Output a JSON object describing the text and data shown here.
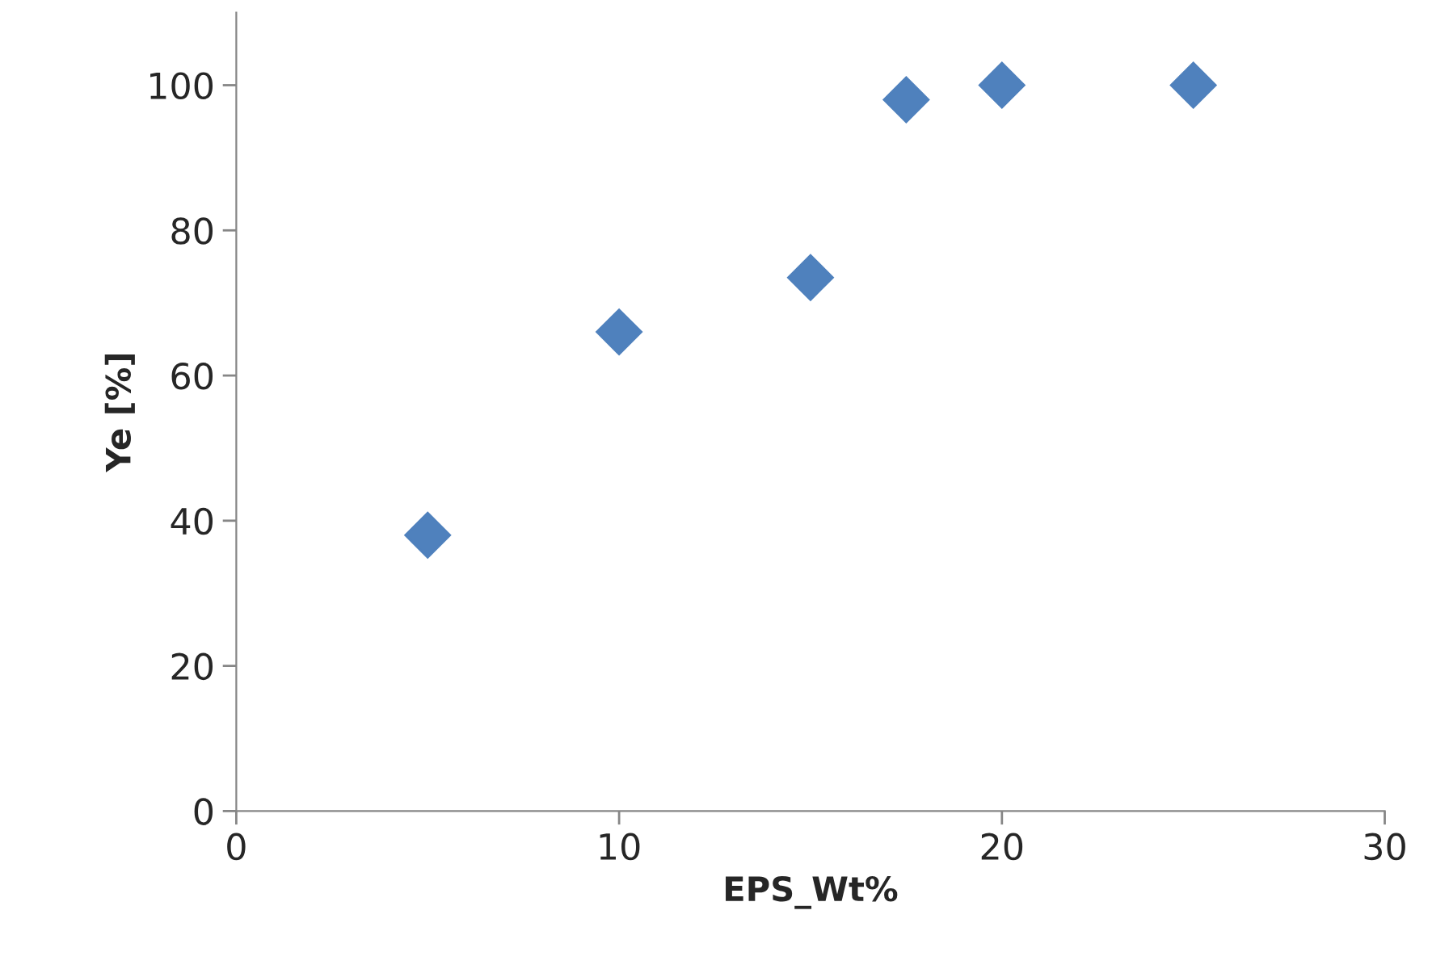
{
  "chart_data": {
    "type": "scatter",
    "xlabel": "EPS_Wt%",
    "ylabel": "Ye [%]",
    "x": [
      5,
      10,
      15,
      17.5,
      20,
      25
    ],
    "series": [
      {
        "color": "#4f81bd",
        "values": [
          38,
          66,
          73.5,
          98,
          100,
          100
        ]
      }
    ],
    "xlim": [
      0,
      30
    ],
    "xticks": [
      0,
      10,
      20,
      30
    ],
    "ylim": [
      0,
      110
    ],
    "yticks": [
      0,
      20,
      40,
      60,
      80,
      100
    ],
    "marker": "diamond",
    "grid": false,
    "legend": false
  }
}
